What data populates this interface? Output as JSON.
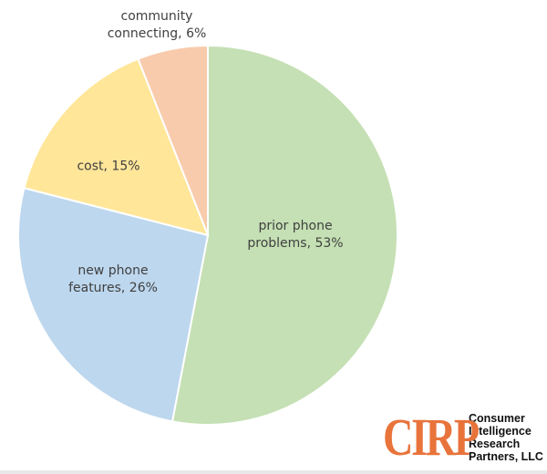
{
  "chart_data": {
    "type": "pie",
    "title": "",
    "start": "top, clockwise",
    "slices": [
      {
        "label_lines": [
          "prior phone",
          "problems, 53%"
        ],
        "category": "prior phone problems",
        "value": 53,
        "color": "#C5E0B4"
      },
      {
        "label_lines": [
          "new phone",
          "features, 26%"
        ],
        "category": "new phone features",
        "value": 26,
        "color": "#BDD7EE"
      },
      {
        "label_lines": [
          "cost, 15%"
        ],
        "category": "cost",
        "value": 15,
        "color": "#FFE699"
      },
      {
        "label_lines": [
          "community",
          "connecting, 6%"
        ],
        "category": "community connecting",
        "value": 6,
        "color": "#F8CBAD"
      }
    ]
  },
  "logo": {
    "mark": "CIRP",
    "text_lines": [
      "Consumer",
      "Intelligence",
      "Research",
      "Partners, LLC"
    ],
    "color": "#E8743B"
  }
}
